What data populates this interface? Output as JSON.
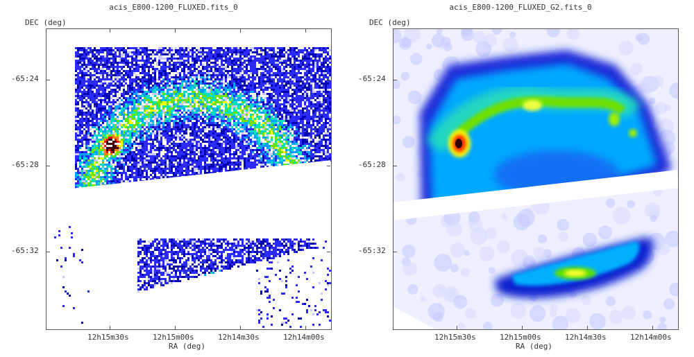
{
  "panels": [
    {
      "title": "acis_E800-1200_FLUXED.fits_0",
      "y_axis_label": "DEC (deg)",
      "x_axis_label": "RA (deg)",
      "dec_ticks": [
        "-65:24",
        "-65:28",
        "-65:32"
      ],
      "ra_ticks": [
        "12h15m30s",
        "12h15m00s",
        "12h14m30s",
        "12h14m00s"
      ],
      "rendering": "noisy-counts"
    },
    {
      "title": "acis_E800-1200_FLUXED_G2.fits_0",
      "y_axis_label": "DEC (deg)",
      "x_axis_label": "RA (deg)",
      "dec_ticks": [
        "-65:24",
        "-65:28",
        "-65:32"
      ],
      "ra_ticks": [
        "12h15m30s",
        "12h15m00s",
        "12h14m30s",
        "12h14m00s"
      ],
      "rendering": "smoothed"
    }
  ],
  "colormap": [
    "#ffffff",
    "#c9c9ff",
    "#2b2bff",
    "#0000b0",
    "#00a0ff",
    "#00e0c0",
    "#70e000",
    "#ffff00",
    "#ff8000",
    "#ff0000",
    "#400000"
  ]
}
